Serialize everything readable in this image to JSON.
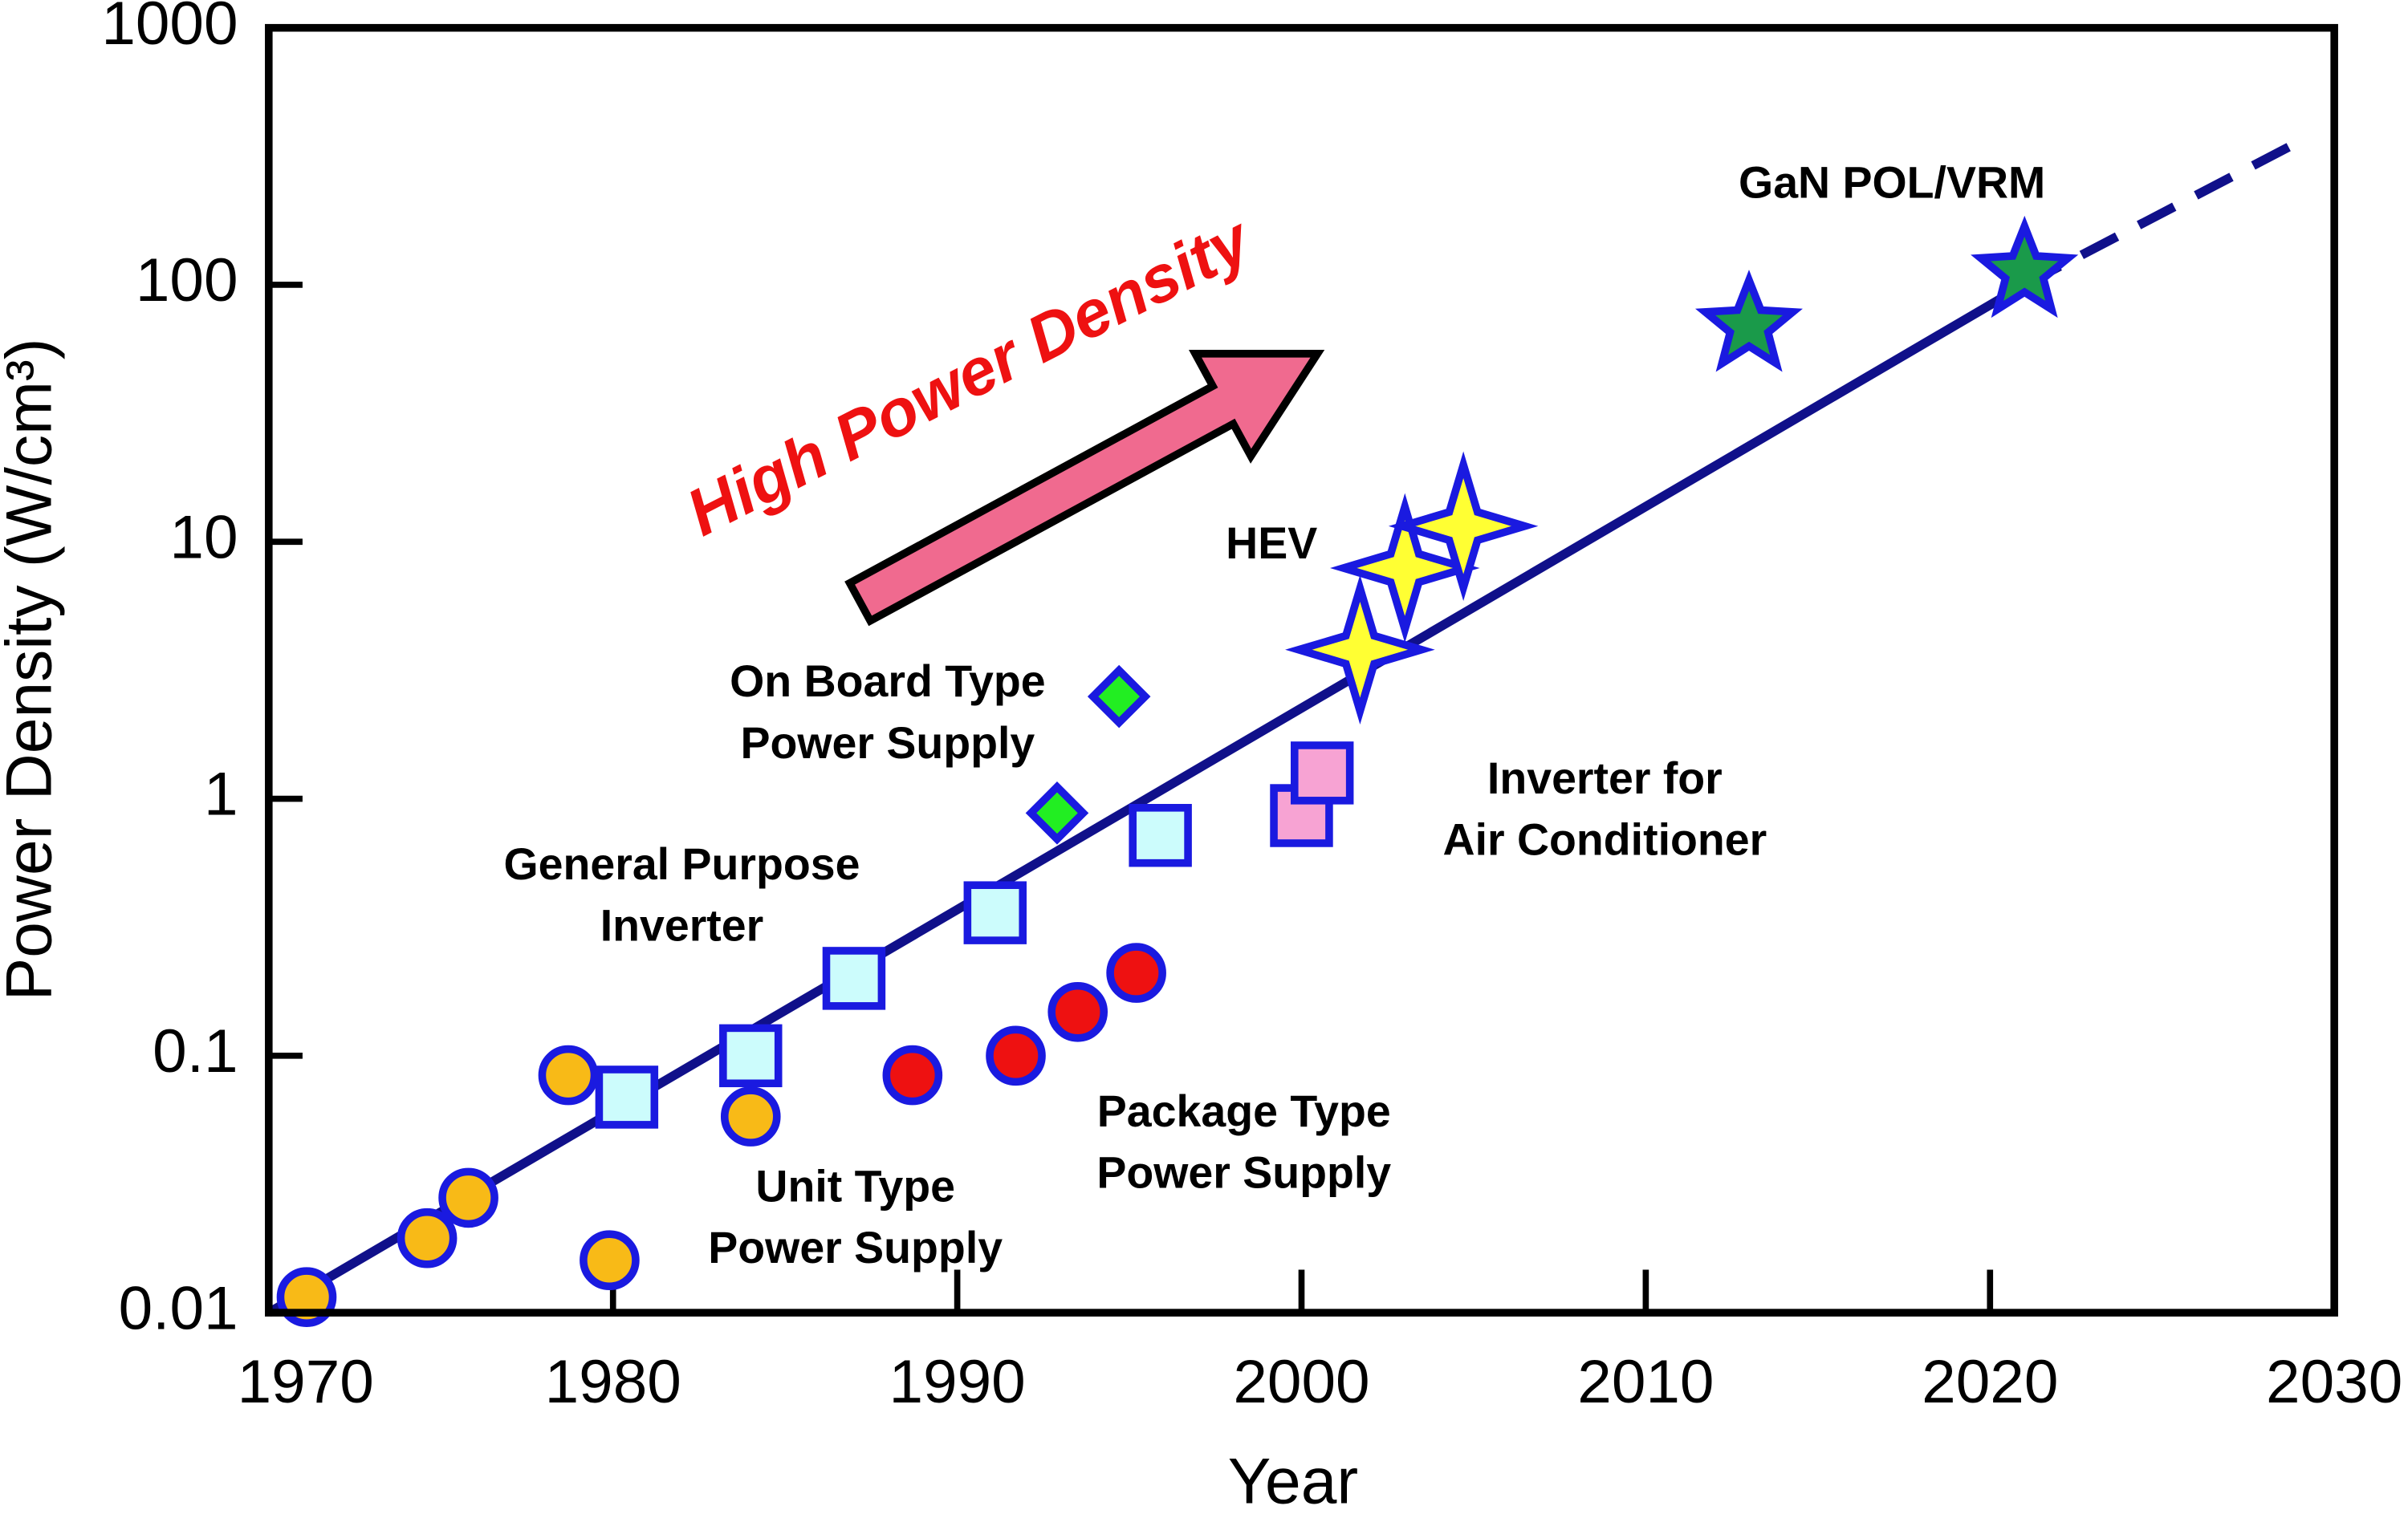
{
  "chart_data": {
    "type": "scatter",
    "x_label": "Year",
    "y_label": "Power Density (W/cm³)",
    "annotation": "High Power Density",
    "xlim": [
      1970,
      2030
    ],
    "xticks": [
      1970,
      1980,
      1990,
      2000,
      2010,
      2020,
      2030
    ],
    "ylim": [
      0.01,
      1000
    ],
    "yticks": [
      0.01,
      0.1,
      1,
      10,
      100,
      1000
    ],
    "yscale": "log",
    "edge_color": "#1a1ae0",
    "series": [
      {
        "label": [
          "Unit Type",
          "Power Supply"
        ],
        "marker": "circle",
        "color": "#f8ba17",
        "x": [
          1971.1,
          1974.6,
          1975.8,
          1978.7,
          1979.9,
          1984.0
        ],
        "values": [
          0.0115,
          0.0195,
          0.028,
          0.084,
          0.016,
          0.058
        ]
      },
      {
        "label": [
          "Package Type",
          "Power Supply"
        ],
        "marker": "circle",
        "color": "#ee1111",
        "x": [
          1988.7,
          1991.7,
          1993.5,
          1995.2
        ],
        "values": [
          0.084,
          0.1,
          0.148,
          0.21
        ]
      },
      {
        "label": [
          "General Purpose",
          "Inverter"
        ],
        "marker": "square",
        "color": "#ccfcfc",
        "x": [
          1980.4,
          1984.0,
          1987.0,
          1991.1,
          1995.9
        ],
        "values": [
          0.069,
          0.1,
          0.2,
          0.36,
          0.72
        ]
      },
      {
        "label": [
          "On Board Type",
          "Power Supply"
        ],
        "marker": "diamond",
        "color": "#22ee22",
        "x": [
          1992.9,
          1994.7
        ],
        "values": [
          0.88,
          2.5
        ]
      },
      {
        "label": [
          "Inverter for",
          "Air Conditioner"
        ],
        "marker": "square",
        "color": "#f7a3d3",
        "x": [
          2000.0,
          2000.6
        ],
        "values": [
          0.86,
          1.26
        ]
      },
      {
        "label": [
          "HEV"
        ],
        "marker": "star4",
        "color": "#ffff33",
        "x": [
          2001.7,
          2003.0,
          2004.7
        ],
        "values": [
          3.8,
          7.9,
          11.5
        ]
      },
      {
        "label": [
          "GaN POL/VRM"
        ],
        "marker": "star5",
        "color": "#1a9a4a",
        "x": [
          2013.0,
          2021.0
        ],
        "values": [
          69,
          112
        ]
      }
    ],
    "trend": {
      "color": "#10108a",
      "x": [
        1970,
        2021
      ],
      "values": [
        0.01,
        100
      ]
    },
    "trend_projection": {
      "color": "#10108a",
      "x": [
        2021,
        2029.3
      ],
      "values": [
        100,
        380
      ]
    }
  }
}
